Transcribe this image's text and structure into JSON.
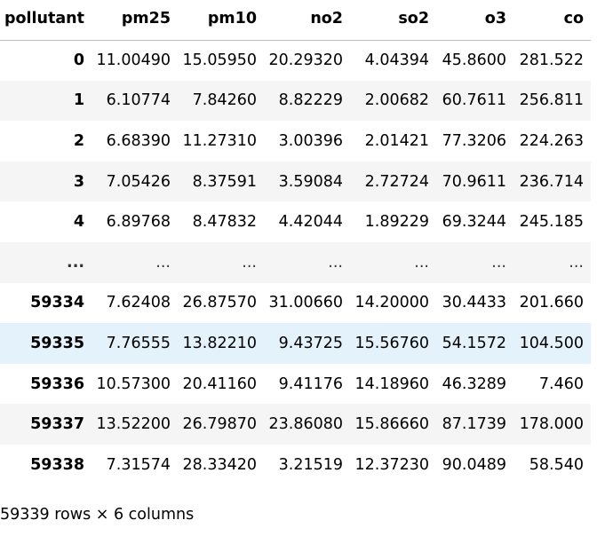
{
  "dataframe": {
    "index_name": "pollutant",
    "columns": [
      "pm25",
      "pm10",
      "no2",
      "so2",
      "o3",
      "co"
    ],
    "rows": [
      {
        "index": "0",
        "values": [
          "11.00490",
          "15.05950",
          "20.29320",
          "4.04394",
          "45.8600",
          "281.522"
        ]
      },
      {
        "index": "1",
        "values": [
          "6.10774",
          "7.84260",
          "8.82229",
          "2.00682",
          "60.7611",
          "256.811"
        ]
      },
      {
        "index": "2",
        "values": [
          "6.68390",
          "11.27310",
          "3.00396",
          "2.01421",
          "77.3206",
          "224.263"
        ]
      },
      {
        "index": "3",
        "values": [
          "7.05426",
          "8.37591",
          "3.59084",
          "2.72724",
          "70.9611",
          "236.714"
        ]
      },
      {
        "index": "4",
        "values": [
          "6.89768",
          "8.47832",
          "4.42044",
          "1.89229",
          "69.3244",
          "245.185"
        ]
      },
      {
        "index": "...",
        "values": [
          "...",
          "...",
          "...",
          "...",
          "...",
          "..."
        ]
      },
      {
        "index": "59334",
        "values": [
          "7.62408",
          "26.87570",
          "31.00660",
          "14.20000",
          "30.4433",
          "201.660"
        ]
      },
      {
        "index": "59335",
        "values": [
          "7.76555",
          "13.82210",
          "9.43725",
          "15.56760",
          "54.1572",
          "104.500"
        ]
      },
      {
        "index": "59336",
        "values": [
          "10.57300",
          "20.41160",
          "9.41176",
          "14.18960",
          "46.3289",
          "7.460"
        ]
      },
      {
        "index": "59337",
        "values": [
          "13.52200",
          "26.79870",
          "23.86080",
          "15.86660",
          "87.1739",
          "178.000"
        ]
      },
      {
        "index": "59338",
        "values": [
          "7.31574",
          "28.33420",
          "3.21519",
          "12.37230",
          "90.0489",
          "58.540"
        ]
      }
    ],
    "shape_text": "59339 rows × 6 columns"
  },
  "colors": {
    "stripe": "#f5f5f5",
    "hover_row": "#e4f3fb",
    "header_border": "#bdbdbd"
  }
}
